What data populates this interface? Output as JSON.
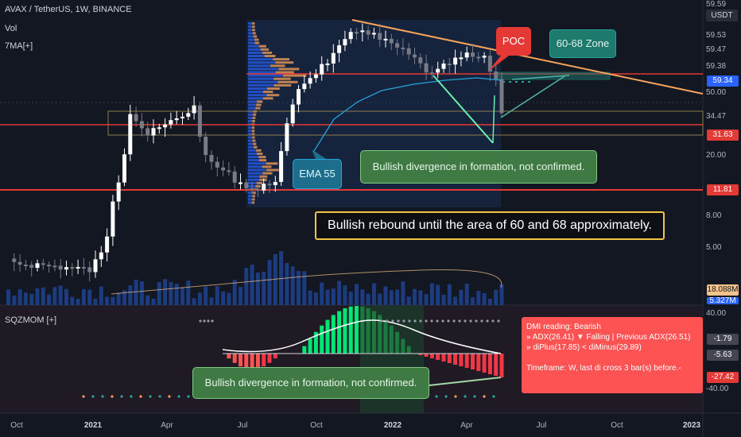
{
  "header": {
    "symbol_line": "AVAX / TetherUS, 1W, BINANCE",
    "vol_label": "Vol",
    "ma_label": "7MA[+]",
    "currency": "USDT",
    "sqz_label": "SQZMOM [+]"
  },
  "price_axis": {
    "ticks": [
      "59.59",
      "59.53",
      "59.47",
      "59.38",
      "50.00",
      "34.47",
      "20.00",
      "8.00",
      "5.00"
    ],
    "badges": [
      {
        "value": "59.34",
        "color": "#2962ff"
      },
      {
        "value": "31.63",
        "color": "#e53935"
      },
      {
        "value": "11.81",
        "color": "#e53935"
      },
      {
        "value": "18.088M",
        "color": "#f5c38a"
      },
      {
        "value": "5.327M",
        "color": "#2962ff"
      }
    ]
  },
  "osc_axis": {
    "ticks": [
      "40.00",
      "-1.79",
      "-5.63",
      "-40.00"
    ],
    "badge": {
      "value": "-27.42",
      "color": "#e53935"
    }
  },
  "time_axis": [
    "Oct",
    "2021",
    "Apr",
    "Jul",
    "Oct",
    "2022",
    "Apr",
    "Jul",
    "Oct",
    "2023"
  ],
  "annotations": {
    "poc": "POC",
    "zone": "60-68 Zone",
    "ema": "EMA 55",
    "divergence_top": "Bullish divergence in formation, not confirmed.",
    "rebound": "Bullish rebound until the area of 60 and 68 approximately.",
    "divergence_bottom": "Bullish divergence in formation, not confirmed."
  },
  "dmi_box": {
    "title": "DMI reading:   Bearish",
    "line1": "» ADX(26.41) ▼ Falling | Previous ADX(26.51)",
    "line2": "» diPlus(17.85) < diMinus(29.89)",
    "line3": "Timeframe: W, last di cross 3 bar(s) before.-"
  },
  "colors": {
    "background": "#131722",
    "up": "#ffffff",
    "down": "#787b86",
    "poc": "#e53935",
    "trend": "#f7a35c",
    "ema": "#26a3d9",
    "callout_green": "#4caf50"
  }
}
